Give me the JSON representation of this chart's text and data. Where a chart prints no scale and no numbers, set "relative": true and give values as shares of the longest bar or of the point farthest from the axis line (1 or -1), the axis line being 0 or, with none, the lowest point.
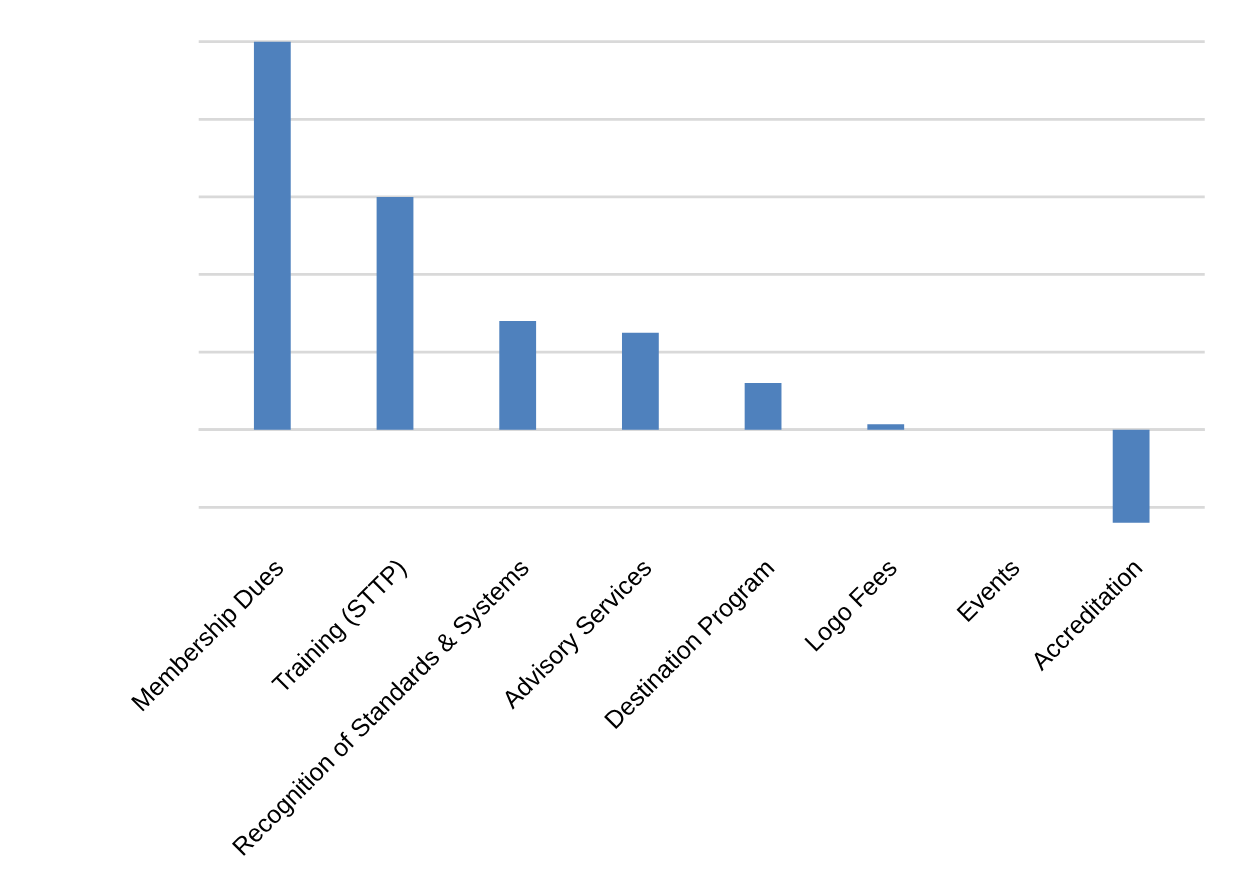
{
  "chart_data": {
    "type": "bar",
    "relative": true,
    "categories": [
      "Membership Dues",
      "Training (STTP)",
      "Recognition of Standards & Systems",
      "Advisory Services",
      "Destination Program",
      "Logo Fees",
      "Events",
      "Accreditation"
    ],
    "values": [
      1,
      0.6,
      0.28,
      0.25,
      0.12,
      0.014,
      0,
      -0.24
    ],
    "color": "#4f81bd",
    "grid": "y",
    "legend": false
  }
}
